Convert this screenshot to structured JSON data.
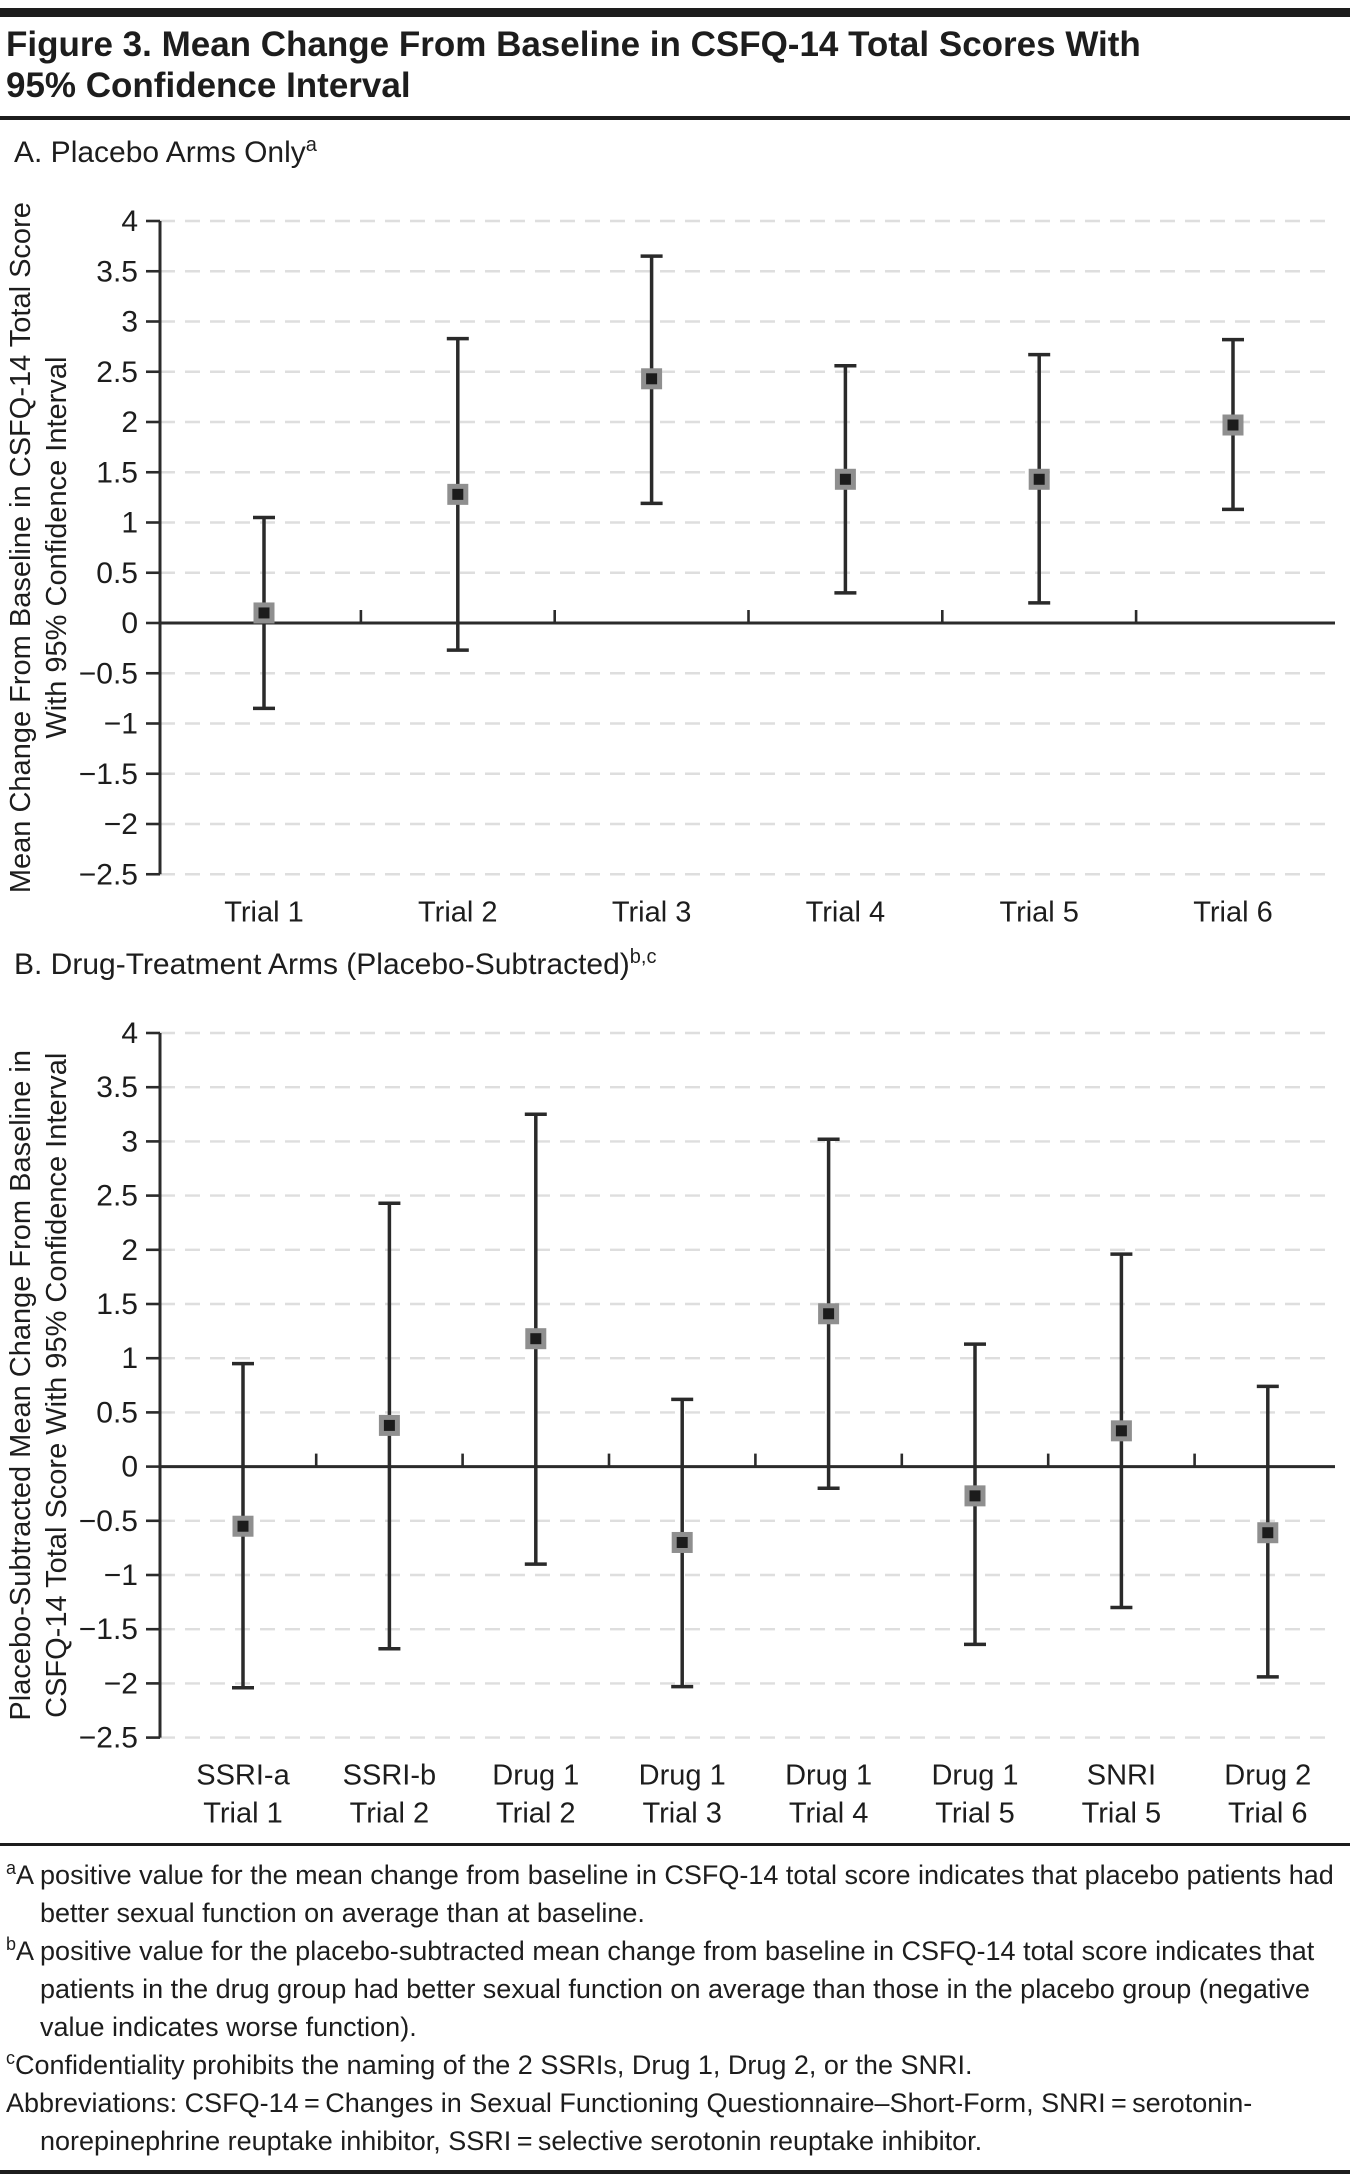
{
  "figure_title": {
    "line1": "Figure 3. Mean Change From Baseline in CSFQ-14 Total Scores With",
    "line2": "95% Confidence Interval"
  },
  "panels": [
    {
      "heading": "A. Placebo Arms Only",
      "heading_sup": "a",
      "y_title_line1": "Mean Change From Baseline in CSFQ-14 Total Score",
      "y_title_line2": "With 95% Confidence Interval"
    },
    {
      "heading": "B. Drug-Treatment Arms (Placebo-Subtracted)",
      "heading_sup": "b,c",
      "y_title_line1": "Placebo-Subtracted Mean Change From Baseline in",
      "y_title_line2": "CSFQ-14 Total Score With 95% Confidence Interval"
    }
  ],
  "chart_data": [
    {
      "type": "scatter",
      "subtype": "point-estimate-with-95ci-error-bars",
      "title": "A. Placebo Arms Only",
      "categories": [
        "Trial 1",
        "Trial 2",
        "Trial 3",
        "Trial 4",
        "Trial 5",
        "Trial 6"
      ],
      "means": [
        0.1,
        1.28,
        2.43,
        1.43,
        1.43,
        1.97
      ],
      "ci_lower": [
        -0.85,
        -0.27,
        1.19,
        0.3,
        0.2,
        1.13
      ],
      "ci_upper": [
        1.05,
        2.83,
        3.65,
        2.56,
        2.67,
        2.82
      ],
      "xlabel": "",
      "ylabel": "Mean Change From Baseline in CSFQ-14 Total Score With 95% Confidence Interval",
      "ylim": [
        -2.5,
        4
      ],
      "ytick_step": 0.5,
      "grid": "horizontal dashed",
      "zero_line": true,
      "legend": false
    },
    {
      "type": "scatter",
      "subtype": "point-estimate-with-95ci-error-bars",
      "title": "B. Drug-Treatment Arms (Placebo-Subtracted)",
      "categories": [
        "SSRI-a\nTrial 1",
        "SSRI-b\nTrial 2",
        "Drug 1\nTrial 2",
        "Drug 1\nTrial 3",
        "Drug 1\nTrial 4",
        "Drug 1\nTrial 5",
        "SNRI\nTrial 5",
        "Drug 2\nTrial 6"
      ],
      "means": [
        -0.55,
        0.38,
        1.18,
        -0.7,
        1.41,
        -0.27,
        0.33,
        -0.61
      ],
      "ci_lower": [
        -2.04,
        -1.68,
        -0.9,
        -2.03,
        -0.2,
        -1.64,
        -1.3,
        -1.94
      ],
      "ci_upper": [
        0.95,
        2.43,
        3.25,
        0.62,
        3.02,
        1.13,
        1.96,
        0.74
      ],
      "xlabel": "",
      "ylabel": "Placebo-Subtracted Mean Change From Baseline in CSFQ-14 Total Score With 95% Confidence Interval",
      "ylim": [
        -2.5,
        4
      ],
      "ytick_step": 0.5,
      "grid": "horizontal dashed",
      "zero_line": true,
      "legend": false
    }
  ],
  "footnotes": [
    {
      "sup": "a",
      "text": "A positive value for the mean change from baseline in CSFQ-14 total score indicates that placebo patients had better sexual function on average than at baseline."
    },
    {
      "sup": "b",
      "text": "A positive value for the placebo-subtracted mean change from baseline in CSFQ-14 total score indicates that patients in the drug group had better sexual function on average than those in the placebo group (negative value indicates worse function)."
    },
    {
      "sup": "c",
      "text": "Confidentiality prohibits the naming of the 2 SSRIs, Drug 1, Drug 2, or the SNRI."
    },
    {
      "sup": "",
      "text": "Abbreviations: CSFQ-14 = Changes in Sexual Functioning Questionnaire–Short-Form, SNRI = serotonin-norepinephrine reuptake inhibitor, SSRI = selective serotonin reuptake inhibitor."
    }
  ],
  "colors": {
    "text": "#1d1d1d",
    "axis": "#2b2b2b",
    "grid": "#dedede",
    "error_bar": "#2a2a2a",
    "marker_fill": "#1c1c1c",
    "marker_border": "#8f8f8f"
  }
}
